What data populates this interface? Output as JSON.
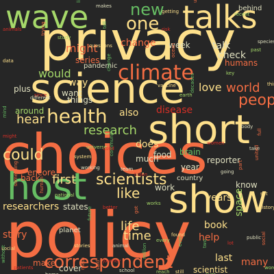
{
  "cloud": {
    "background": "#262626",
    "palette": [
      "#f46d43",
      "#fee08b",
      "#a6d96a",
      "#66bd63",
      "#e0e0c0",
      "#d73027"
    ],
    "words": {
      "privacy": "privacy",
      "choices": "choices",
      "policy": "policy",
      "science": "science",
      "short": "short",
      "show": "show",
      "host": "host",
      "talks": "talks",
      "wave": "wave",
      "climate": "climate",
      "health": "health",
      "correspondent": "correspondent",
      "new": "new",
      "one": "one",
      "scientists": "scientists",
      "people": "people",
      "could": "could",
      "might": "might",
      "first": "first",
      "like": "like",
      "time": "time",
      "life": "life",
      "research": "research",
      "world": "world",
      "love": "love",
      "years": "years",
      "would": "would",
      "hear": "hear",
      "also": "also",
      "disease": "disease",
      "researchers": "researchers",
      "states": "states",
      "help": "help",
      "last": "last",
      "many": "many",
      "scientist": "scientist",
      "book": "book",
      "story": "story",
      "planet": "planet",
      "make": "make",
      "cover": "cover",
      "does": "does",
      "much": "much",
      "food": "food",
      "year": "year",
      "reporter": "reporter",
      "brain": "brain",
      "country": "country",
      "work": "work",
      "know": "know",
      "encore": "encore",
      "back": "back",
      "talk": "talk",
      "check": "check",
      "change": "change",
      "week": "week",
      "plus": "plus",
      "series": "series",
      "pandemic": "pandemic",
      "way": "way",
      "want": "want",
      "things": "things",
      "around": "around",
      "humans": "humans",
      "space": "space",
      "behind": "behind"
    },
    "small_words": [
      "makes",
      "university",
      "recent",
      "getting",
      "like",
      "animals",
      "species",
      "ocean",
      "key",
      "data",
      "change",
      "since",
      "body",
      "full",
      "earth",
      "vaccine",
      "mind",
      "might",
      "take",
      "united",
      "universe",
      "system",
      "community",
      "used",
      "working",
      "human",
      "national",
      "history",
      "future",
      "better",
      "animal",
      "got",
      "works",
      "stories",
      "ever",
      "journey",
      "school",
      "math",
      "reach",
      "still",
      "two",
      "lot",
      "public",
      "social",
      "words",
      "social",
      "without",
      "patients",
      "different",
      "trying",
      "study",
      "questions",
      "decades",
      "women",
      "going",
      "part",
      "every",
      "found",
      "million",
      "listen",
      "team",
      "something",
      "past",
      "think",
      "tell",
      "risk",
      "home",
      "said",
      "sure",
      "set"
    ]
  }
}
